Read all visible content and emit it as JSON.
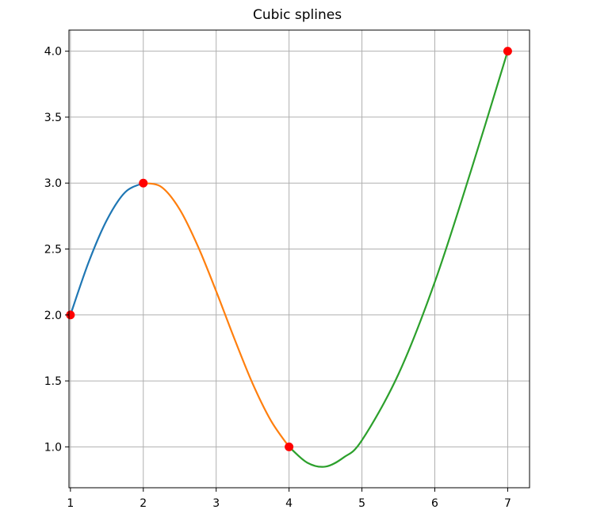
{
  "chart_data": {
    "type": "line",
    "title": "Cubic splines",
    "xlabel": "",
    "ylabel": "",
    "xlim": [
      0.98,
      7.3
    ],
    "ylim": [
      0.69,
      4.16
    ],
    "xticks": [
      1,
      2,
      3,
      4,
      5,
      6,
      7
    ],
    "xtick_labels": [
      "1",
      "2",
      "3",
      "4",
      "5",
      "6",
      "7"
    ],
    "yticks": [
      1.0,
      1.5,
      2.0,
      2.5,
      3.0,
      3.5,
      4.0
    ],
    "ytick_labels": [
      "1.0",
      "1.5",
      "2.0",
      "2.5",
      "3.0",
      "3.5",
      "4.0"
    ],
    "grid": true,
    "legend": "none",
    "points": {
      "x": [
        1,
        2,
        4,
        7
      ],
      "y": [
        2,
        3,
        1,
        4
      ],
      "color": "#ff0000"
    },
    "series": [
      {
        "color": "#1f77b4",
        "x": [
          1.0,
          1.25,
          1.5,
          1.75,
          2.0
        ],
        "y": [
          2.0,
          2.4,
          2.72,
          2.93,
          3.0
        ]
      },
      {
        "color": "#ff7f0e",
        "x": [
          2.0,
          2.25,
          2.5,
          2.75,
          3.0,
          3.25,
          3.5,
          3.75,
          4.0
        ],
        "y": [
          3.0,
          2.97,
          2.8,
          2.52,
          2.18,
          1.82,
          1.48,
          1.2,
          1.0
        ]
      },
      {
        "color": "#2ca02c",
        "x": [
          4.0,
          4.25,
          4.5,
          4.75,
          5.0,
          5.5,
          6.0,
          6.5,
          7.0
        ],
        "y": [
          1.0,
          0.88,
          0.85,
          0.92,
          1.05,
          1.55,
          2.25,
          3.1,
          4.0
        ]
      }
    ]
  }
}
